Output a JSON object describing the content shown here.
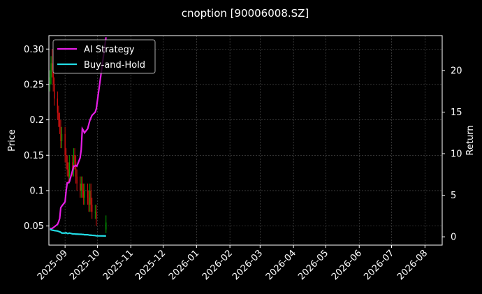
{
  "chart_data": {
    "type": "candlestick",
    "title": "cnoption [90006008.SZ]",
    "ylabel": "Price",
    "y2label": "Return",
    "x": [
      "2025-08-18",
      "2025-08-19",
      "2025-08-20",
      "2025-08-21",
      "2025-08-22",
      "2025-08-25",
      "2025-08-26",
      "2025-08-27",
      "2025-08-28",
      "2025-08-29",
      "2025-09-01",
      "2025-09-02",
      "2025-09-03",
      "2025-09-04",
      "2025-09-05",
      "2025-09-08",
      "2025-09-09",
      "2025-09-10",
      "2025-09-11",
      "2025-09-12",
      "2025-09-15",
      "2025-09-16",
      "2025-09-17",
      "2025-09-18",
      "2025-09-19",
      "2025-09-22",
      "2025-09-23",
      "2025-09-24",
      "2025-09-25",
      "2025-09-26",
      "2025-09-29",
      "2025-09-30",
      "2025-10-09"
    ],
    "open": [
      0.25,
      0.26,
      0.28,
      0.27,
      0.25,
      0.23,
      0.21,
      0.2,
      0.19,
      0.17,
      0.18,
      0.15,
      0.14,
      0.13,
      0.12,
      0.14,
      0.13,
      0.15,
      0.14,
      0.12,
      0.11,
      0.1,
      0.11,
      0.1,
      0.09,
      0.1,
      0.09,
      0.08,
      0.1,
      0.08,
      0.07,
      0.07,
      0.045
    ],
    "high": [
      0.27,
      0.29,
      0.3,
      0.28,
      0.26,
      0.24,
      0.22,
      0.21,
      0.2,
      0.19,
      0.19,
      0.16,
      0.15,
      0.14,
      0.15,
      0.15,
      0.16,
      0.16,
      0.15,
      0.13,
      0.12,
      0.12,
      0.12,
      0.11,
      0.11,
      0.11,
      0.1,
      0.11,
      0.11,
      0.09,
      0.08,
      0.08,
      0.065
    ],
    "low": [
      0.24,
      0.25,
      0.26,
      0.24,
      0.22,
      0.2,
      0.19,
      0.18,
      0.16,
      0.16,
      0.14,
      0.13,
      0.12,
      0.11,
      0.11,
      0.12,
      0.12,
      0.13,
      0.11,
      0.1,
      0.09,
      0.09,
      0.09,
      0.08,
      0.08,
      0.08,
      0.07,
      0.07,
      0.07,
      0.06,
      0.06,
      0.05,
      0.04
    ],
    "close": [
      0.26,
      0.28,
      0.27,
      0.25,
      0.23,
      0.21,
      0.2,
      0.19,
      0.17,
      0.18,
      0.15,
      0.14,
      0.13,
      0.12,
      0.14,
      0.13,
      0.15,
      0.14,
      0.12,
      0.11,
      0.1,
      0.11,
      0.1,
      0.09,
      0.1,
      0.09,
      0.08,
      0.1,
      0.08,
      0.07,
      0.07,
      0.06,
      0.055
    ],
    "up_color": "#00a000",
    "down_color": "#d01010",
    "series": [
      {
        "name": "AI Strategy",
        "color": "#e61ee6",
        "axis": "y2",
        "values": [
          1,
          1,
          1,
          1.1,
          1.2,
          1.5,
          1.8,
          2.2,
          3.5,
          3.7,
          4.2,
          5.5,
          6.5,
          6.5,
          6.6,
          8,
          8.5,
          8.5,
          8.6,
          8.5,
          9.5,
          10.5,
          13,
          12.8,
          12.5,
          13,
          13.5,
          14,
          14.3,
          14.6,
          15,
          15.4,
          24
        ]
      },
      {
        "name": "Buy-and-Hold",
        "color": "#22dde6",
        "axis": "y2",
        "values": [
          0.9,
          0.85,
          0.8,
          0.78,
          0.75,
          0.7,
          0.65,
          0.6,
          0.55,
          0.45,
          0.45,
          0.5,
          0.4,
          0.4,
          0.45,
          0.35,
          0.35,
          0.35,
          0.32,
          0.32,
          0.3,
          0.3,
          0.28,
          0.28,
          0.25,
          0.25,
          0.22,
          0.2,
          0.2,
          0.18,
          0.15,
          0.12,
          0.1
        ]
      }
    ],
    "xlim": [
      "2025-08-17",
      "2026-08-17"
    ],
    "xticks": [
      "2025-09",
      "2025-10",
      "2025-11",
      "2025-12",
      "2026-01",
      "2026-02",
      "2026-03",
      "2026-04",
      "2026-05",
      "2026-06",
      "2026-07",
      "2026-08"
    ],
    "ylim": [
      0.023,
      0.319
    ],
    "yticks": [
      0.05,
      0.1,
      0.15,
      0.2,
      0.25,
      {
        "value": 0.3,
        "label": "0.30"
      }
    ],
    "y2lim": [
      -1,
      24.2
    ],
    "y2ticks": [
      0,
      5,
      10,
      15,
      20
    ],
    "grid": true,
    "legend": "upper left"
  }
}
